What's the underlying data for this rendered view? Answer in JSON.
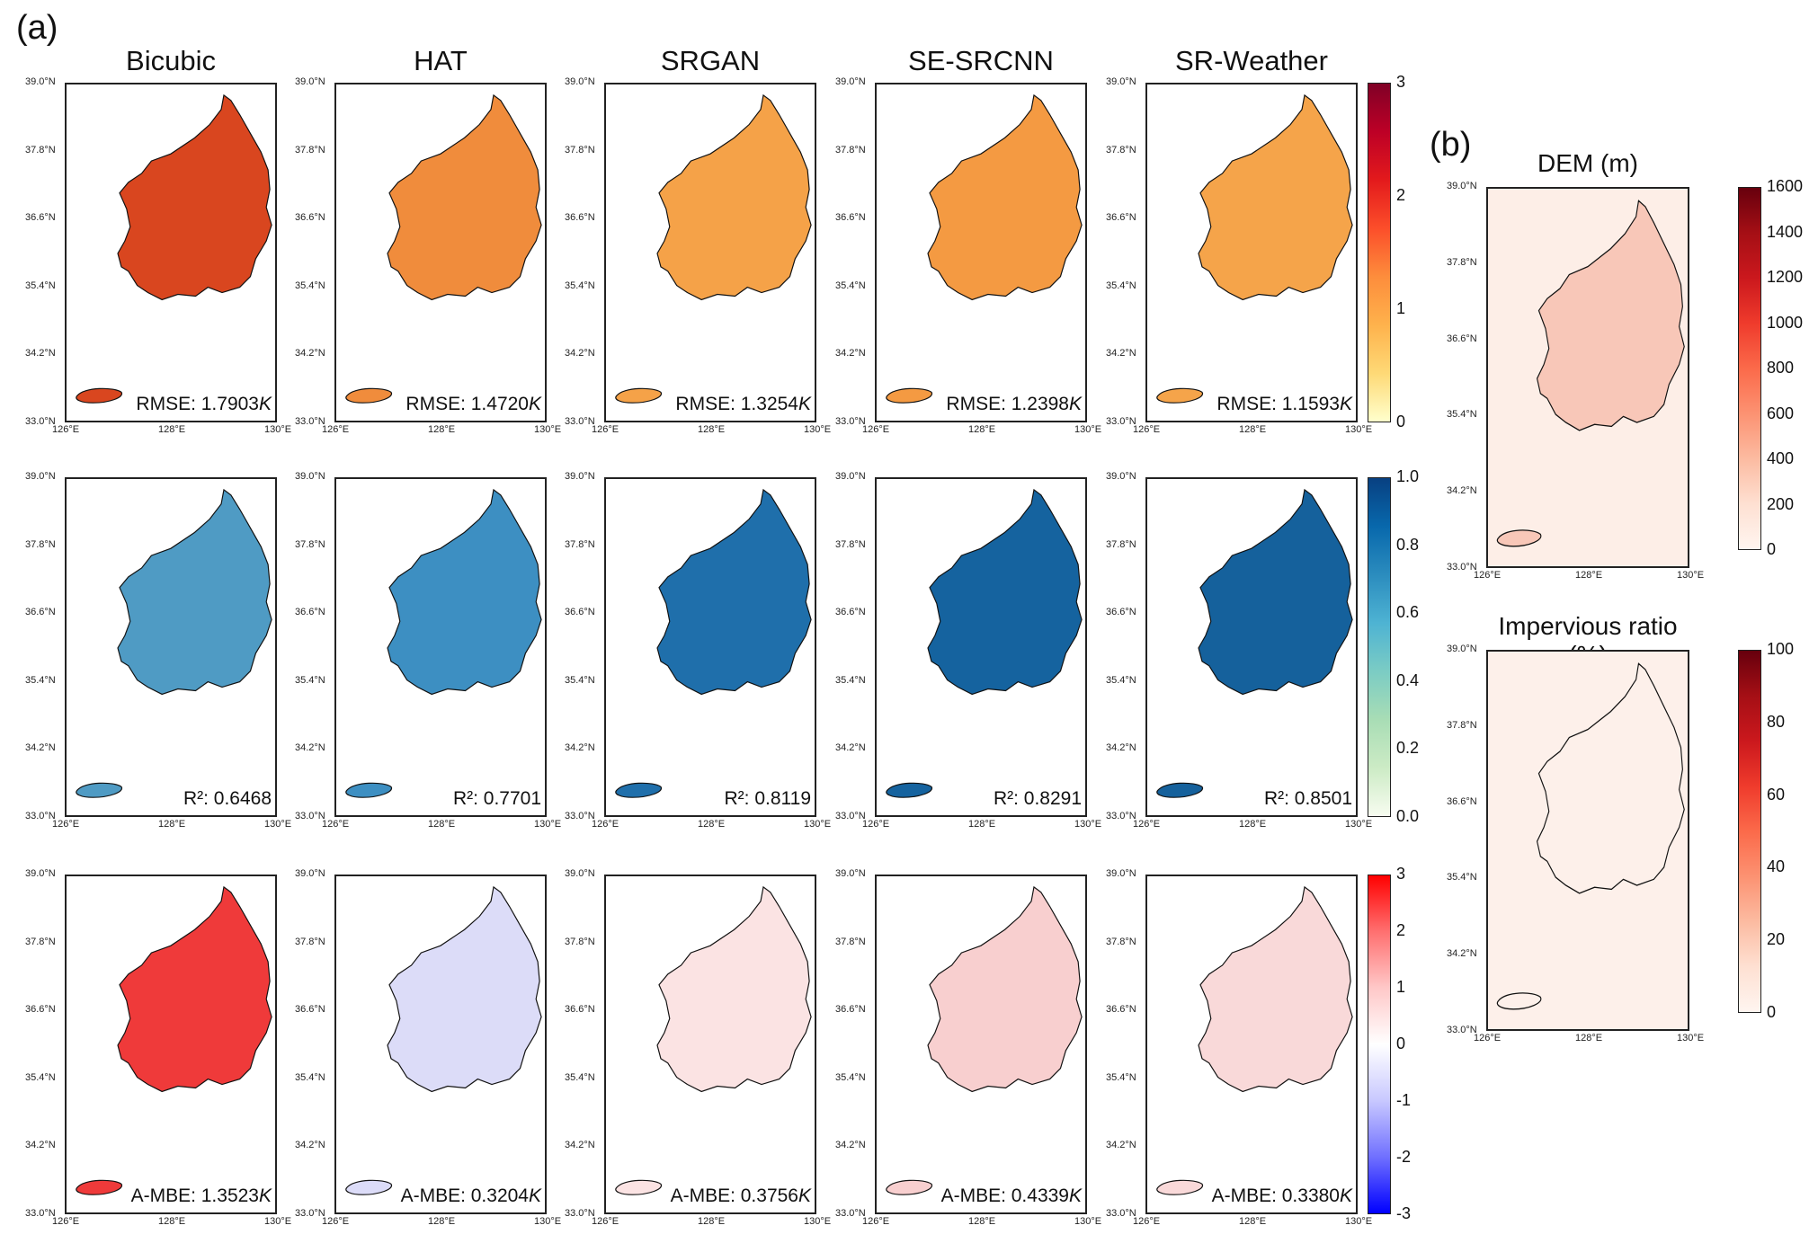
{
  "panel_a_label": "(a)",
  "panel_b_label": "(b)",
  "columns": [
    "Bicubic",
    "HAT",
    "SRGAN",
    "SE-SRCNN",
    "SR-Weather"
  ],
  "lat_ticks": [
    "39.0°N",
    "37.8°N",
    "36.6°N",
    "35.4°N",
    "34.2°N",
    "33.0°N"
  ],
  "lon_ticks": [
    "126°E",
    "128°E",
    "130°E"
  ],
  "rows": [
    {
      "metric_name": "RMSE",
      "unit": "K",
      "values": [
        "1.7903",
        "1.4720",
        "1.3254",
        "1.2398",
        "1.1593"
      ],
      "labels": [
        "RMSE: 1.7903",
        "RMSE: 1.4720",
        "RMSE: 1.3254",
        "RMSE: 1.2398",
        "RMSE: 1.1593"
      ],
      "colorbar_ticks": [
        "3",
        "2",
        "1",
        "0"
      ],
      "colormap": [
        "#800026",
        "#bd0026",
        "#e31a1c",
        "#fc4e2a",
        "#fd8d3c",
        "#feb24c",
        "#fed976",
        "#ffffcc"
      ],
      "fills": [
        "#d9461f",
        "#f08c3c",
        "#f5a248",
        "#f49a42",
        "#f5a44a"
      ]
    },
    {
      "metric_name": "R²",
      "unit": "",
      "values": [
        "0.6468",
        "0.7701",
        "0.8119",
        "0.8291",
        "0.8501"
      ],
      "labels": [
        "R²: 0.6468",
        "R²: 0.7701",
        "R²: 0.8119",
        "R²: 0.8291",
        "R²: 0.8501"
      ],
      "colorbar_ticks": [
        "1.0",
        "0.8",
        "0.6",
        "0.4",
        "0.2",
        "0.0"
      ],
      "colormap": [
        "#084081",
        "#0868ac",
        "#2b8cbe",
        "#4eb3d3",
        "#7bccc4",
        "#a8ddb5",
        "#ccebc5",
        "#f7fcf0"
      ],
      "fills": [
        "#4f9bc4",
        "#3d8fc2",
        "#1f6fab",
        "#15639f",
        "#15619c"
      ]
    },
    {
      "metric_name": "A-MBE",
      "unit": "K",
      "values": [
        "1.3523",
        "0.3204",
        "0.3756",
        "0.4339",
        "0.3380"
      ],
      "labels": [
        "A-MBE: 1.3523",
        "A-MBE: 0.3204",
        "A-MBE: 0.3756",
        "A-MBE: 0.4339",
        "A-MBE: 0.3380"
      ],
      "colorbar_ticks": [
        "3",
        "2",
        "1",
        "0",
        "-1",
        "-2",
        "-3"
      ],
      "colormap": [
        "#ff0000",
        "#ff7070",
        "#ffc8c8",
        "#ffffff",
        "#c8c8ff",
        "#7070ff",
        "#0000ff"
      ],
      "fills": [
        "#ef3a3a",
        "#dcdcf8",
        "#fbe3e3",
        "#f8cfcf",
        "#f9d9d9"
      ]
    }
  ],
  "side_panels": [
    {
      "title": "DEM (m)",
      "colorbar_ticks": [
        "1600",
        "1400",
        "1200",
        "1000",
        "800",
        "600",
        "400",
        "200",
        "0"
      ],
      "colormap": [
        "#67000d",
        "#a50f15",
        "#cb181d",
        "#ef3b2c",
        "#fb6a4a",
        "#fc9272",
        "#fcbba1",
        "#fee0d2",
        "#fff5f0"
      ],
      "fill": "#f8c7b8",
      "background": "#fdeee7"
    },
    {
      "title": "Impervious ratio (%)",
      "colorbar_ticks": [
        "100",
        "80",
        "60",
        "40",
        "20",
        "0"
      ],
      "colormap": [
        "#67000d",
        "#a50f15",
        "#cb181d",
        "#ef3b2c",
        "#fb6a4a",
        "#fc9272",
        "#fcbba1",
        "#fee0d2",
        "#fff5f0"
      ],
      "fill": "#fdf0ea",
      "background": "#fdf0ea"
    }
  ]
}
